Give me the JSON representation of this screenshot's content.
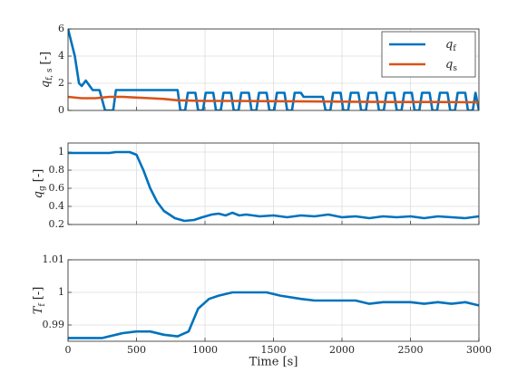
{
  "chart_data": [
    {
      "type": "line",
      "ylabel": {
        "symbol": "q",
        "subscript": "f, s",
        "unit": "[-]"
      },
      "xlim": [
        0,
        3000
      ],
      "ylim": [
        0,
        6
      ],
      "xticks": [
        0,
        500,
        1000,
        1500,
        2000,
        2500,
        3000
      ],
      "yticks": [
        0,
        2,
        4,
        6
      ],
      "grid": true,
      "legend": "upper right",
      "series": [
        {
          "name": {
            "symbol": "q",
            "subscript": "f"
          },
          "color": "#0072bd",
          "x": [
            0,
            50,
            80,
            100,
            130,
            180,
            230,
            270,
            330,
            350,
            800,
            820,
            855,
            875,
            930,
            950,
            985,
            1005,
            1060,
            1080,
            1115,
            1135,
            1190,
            1210,
            1245,
            1265,
            1320,
            1340,
            1375,
            1395,
            1450,
            1470,
            1505,
            1525,
            1580,
            1600,
            1635,
            1655,
            1700,
            1720,
            1860,
            1880,
            1915,
            1935,
            1990,
            2010,
            2045,
            2065,
            2120,
            2140,
            2175,
            2195,
            2250,
            2270,
            2305,
            2325,
            2380,
            2400,
            2435,
            2455,
            2510,
            2530,
            2565,
            2585,
            2640,
            2660,
            2695,
            2715,
            2770,
            2790,
            2825,
            2845,
            2900,
            2920,
            2955,
            2975,
            3000
          ],
          "values": [
            6,
            4,
            2,
            1.8,
            2.2,
            1.5,
            1.5,
            0,
            0,
            1.5,
            1.5,
            0,
            0,
            1.3,
            1.3,
            0,
            0,
            1.3,
            1.3,
            0,
            0,
            1.3,
            1.3,
            0,
            0,
            1.3,
            1.3,
            0,
            0,
            1.3,
            1.3,
            0,
            0,
            1.3,
            1.3,
            0,
            0,
            1.3,
            1.3,
            1,
            1,
            0,
            0,
            1.3,
            1.3,
            0,
            0,
            1.3,
            1.3,
            0,
            0,
            1.3,
            1.3,
            0,
            0,
            1.3,
            1.3,
            0,
            0,
            1.3,
            1.3,
            0,
            0,
            1.3,
            1.3,
            0,
            0,
            1.3,
            1.3,
            0,
            0,
            1.3,
            1.3,
            0,
            0,
            1.3,
            0
          ]
        },
        {
          "name": {
            "symbol": "q",
            "subscript": "s"
          },
          "color": "#d95319",
          "x": [
            0,
            100,
            200,
            300,
            400,
            500,
            600,
            700,
            800,
            1000,
            1200,
            1500,
            1800,
            2100,
            2400,
            2700,
            3000
          ],
          "values": [
            1,
            0.9,
            0.9,
            1,
            1,
            0.95,
            0.9,
            0.85,
            0.75,
            0.7,
            0.7,
            0.68,
            0.66,
            0.64,
            0.62,
            0.62,
            0.6
          ]
        }
      ]
    },
    {
      "type": "line",
      "ylabel": {
        "symbol": "q",
        "subscript": "g",
        "unit": "[-]"
      },
      "xlim": [
        0,
        3000
      ],
      "ylim": [
        0.2,
        1.1
      ],
      "xticks": [
        0,
        500,
        1000,
        1500,
        2000,
        2500,
        3000
      ],
      "yticks": [
        0.2,
        0.4,
        0.6,
        0.8,
        1
      ],
      "grid": true,
      "series": [
        {
          "color": "#0072bd",
          "x": [
            0,
            300,
            350,
            450,
            500,
            550,
            600,
            650,
            700,
            780,
            850,
            920,
            980,
            1050,
            1100,
            1150,
            1200,
            1250,
            1300,
            1400,
            1500,
            1600,
            1700,
            1800,
            1900,
            2000,
            2100,
            2200,
            2300,
            2400,
            2500,
            2600,
            2700,
            2800,
            2900,
            3000
          ],
          "values": [
            0.99,
            0.99,
            1,
            1,
            0.97,
            0.8,
            0.6,
            0.45,
            0.35,
            0.27,
            0.24,
            0.25,
            0.28,
            0.31,
            0.32,
            0.3,
            0.33,
            0.3,
            0.31,
            0.29,
            0.3,
            0.28,
            0.3,
            0.29,
            0.31,
            0.28,
            0.29,
            0.27,
            0.29,
            0.28,
            0.29,
            0.27,
            0.29,
            0.28,
            0.27,
            0.29
          ]
        }
      ]
    },
    {
      "type": "line",
      "ylabel": {
        "symbol": "T",
        "subscript": "f",
        "unit": "[-]"
      },
      "xlabel": "Time [s]",
      "xlim": [
        0,
        3000
      ],
      "ylim": [
        0.985,
        1.01
      ],
      "xticks": [
        0,
        500,
        1000,
        1500,
        2000,
        2500,
        3000
      ],
      "yticks": [
        0.99,
        1,
        1.01
      ],
      "grid": true,
      "series": [
        {
          "color": "#0072bd",
          "x": [
            0,
            250,
            350,
            400,
            500,
            600,
            700,
            800,
            880,
            950,
            1030,
            1100,
            1200,
            1450,
            1550,
            1700,
            1800,
            2100,
            2200,
            2300,
            2500,
            2600,
            2700,
            2800,
            2900,
            3000
          ],
          "values": [
            0.986,
            0.986,
            0.987,
            0.9875,
            0.988,
            0.988,
            0.987,
            0.9865,
            0.988,
            0.995,
            0.998,
            0.999,
            1,
            1,
            0.999,
            0.998,
            0.9975,
            0.9975,
            0.9965,
            0.997,
            0.997,
            0.9965,
            0.997,
            0.9965,
            0.997,
            0.996
          ]
        }
      ]
    }
  ]
}
